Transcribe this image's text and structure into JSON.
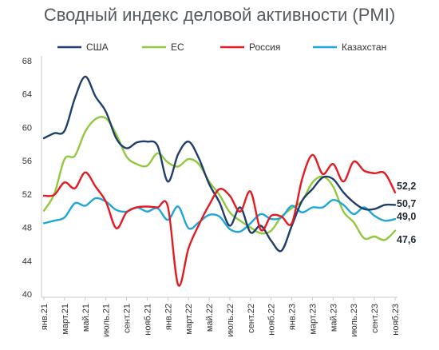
{
  "chart_data": {
    "type": "line",
    "title": "Сводный индекс деловой активности (PMI)",
    "xlabel": "",
    "ylabel": "",
    "ylim": [
      40,
      68
    ],
    "yticks": [
      40,
      44,
      48,
      52,
      56,
      60,
      64,
      68
    ],
    "grid": false,
    "legend_position": "top",
    "x": [
      "янв.21",
      "февр.21",
      "март.21",
      "апр.21",
      "май.21",
      "июнь.21",
      "июль.21",
      "авг.21",
      "сент.21",
      "окт.21",
      "нояб.21",
      "дек.21",
      "янв.22",
      "февр.22",
      "март.22",
      "апр.22",
      "май.22",
      "июнь.22",
      "июль.22",
      "авг.22",
      "сент.22",
      "окт.22",
      "нояб.22",
      "дек.22",
      "янв.23",
      "февр.23",
      "март.23",
      "апр.23",
      "май.23",
      "июнь.23",
      "июль.23",
      "авг.23",
      "сент.23",
      "окт.23",
      "нояб.23"
    ],
    "x_tick_labels": [
      "янв.21",
      "март.21",
      "май.21",
      "июль.21",
      "сент.21",
      "нояб.21",
      "янв.22",
      "март.22",
      "май.22",
      "июль.22",
      "сент.22",
      "нояб.22",
      "янв.23",
      "март.23",
      "май.23",
      "июль.23",
      "сент.23",
      "нояб.23"
    ],
    "series": [
      {
        "name": "США",
        "color": "#1f3f6b",
        "end_label": "50,7",
        "values": [
          58.7,
          59.3,
          59.6,
          63.5,
          66.1,
          63.7,
          61.9,
          58.7,
          57.5,
          58.2,
          58.3,
          57.8,
          53.5,
          56.8,
          58.3,
          56.3,
          53.2,
          51.0,
          48.2,
          50.4,
          47.4,
          48.2,
          46.4,
          45.2,
          48.2,
          51.2,
          52.6,
          54.0,
          53.8,
          52.2,
          51.0,
          50.2,
          50.2,
          50.7,
          50.7
        ]
      },
      {
        "name": "ЕС",
        "color": "#92c83e",
        "end_label": "47,6",
        "values": [
          50.0,
          52.0,
          56.2,
          56.6,
          59.5,
          61.0,
          61.1,
          59.2,
          56.5,
          55.6,
          55.4,
          56.9,
          55.8,
          55.3,
          56.2,
          55.6,
          53.5,
          51.9,
          49.8,
          48.8,
          48.0,
          47.3,
          47.6,
          49.3,
          50.3,
          51.2,
          53.4,
          54.1,
          52.9,
          49.9,
          48.6,
          46.7,
          46.9,
          46.5,
          47.6
        ]
      },
      {
        "name": "Россия",
        "color": "#e31b23",
        "end_label": "52,2",
        "values": [
          51.8,
          51.9,
          53.4,
          52.7,
          54.6,
          52.9,
          51.1,
          47.9,
          49.8,
          50.4,
          50.5,
          50.4,
          50.5,
          41.1,
          45.5,
          48.3,
          50.7,
          52.6,
          51.8,
          49.9,
          52.3,
          47.7,
          49.4,
          49.3,
          48.5,
          53.8,
          56.7,
          54.4,
          55.6,
          53.5,
          55.9,
          54.8,
          54.5,
          54.5,
          52.2
        ]
      },
      {
        "name": "Казахстан",
        "color": "#1fa6d9",
        "end_label": "49,0",
        "values": [
          48.5,
          48.8,
          49.2,
          50.9,
          50.6,
          51.5,
          51.1,
          50.1,
          49.9,
          50.4,
          49.9,
          50.3,
          48.9,
          50.5,
          47.9,
          48.6,
          49.5,
          49.3,
          47.8,
          47.5,
          48.5,
          49.6,
          49.0,
          49.2,
          50.6,
          49.8,
          50.4,
          50.4,
          51.3,
          50.7,
          49.6,
          50.4,
          49.4,
          48.8,
          49.0
        ]
      }
    ]
  }
}
